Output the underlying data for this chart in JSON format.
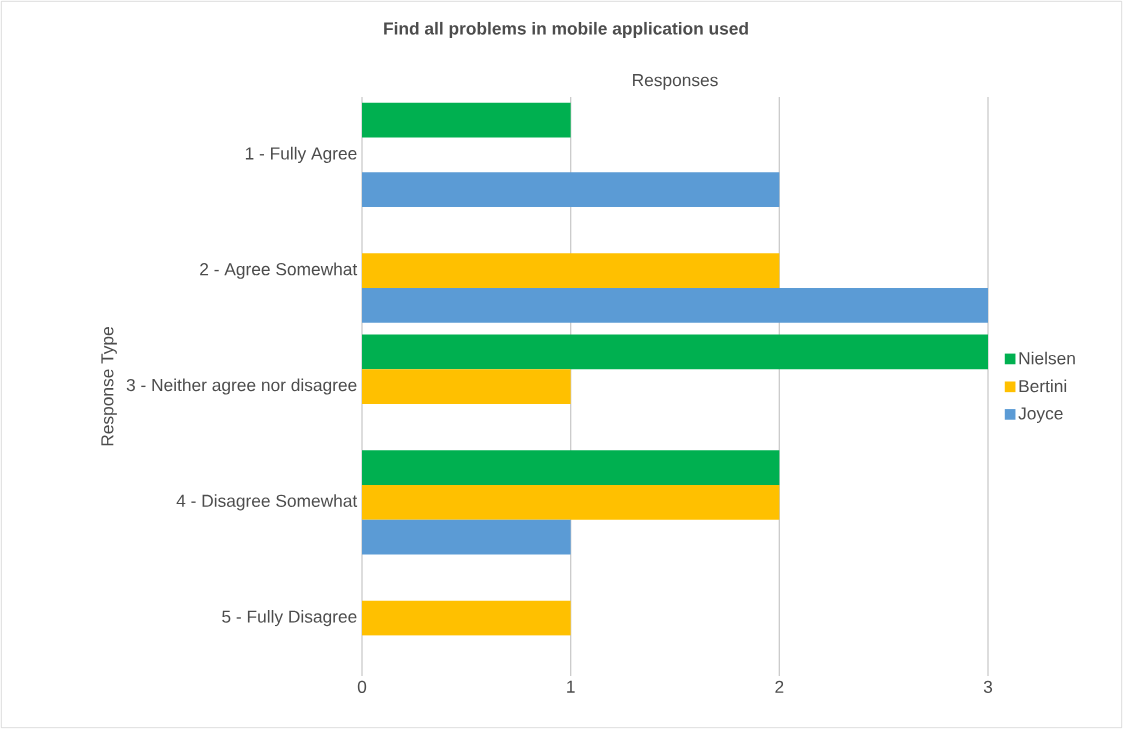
{
  "chart_data": {
    "type": "bar",
    "orientation": "horizontal",
    "title": "Find all problems in mobile application used",
    "xlabel": "Responses",
    "ylabel": "Response Type",
    "categories": [
      "1 - Fully Agree",
      "2 - Agree Somewhat",
      "3 - Neither agree nor disagree",
      "4 - Disagree Somewhat",
      "5 - Fully Disagree"
    ],
    "series": [
      {
        "name": "Nielsen",
        "color": "#00b050",
        "values": [
          1,
          0,
          3,
          2,
          0
        ]
      },
      {
        "name": "Bertini",
        "color": "#ffc000",
        "values": [
          0,
          2,
          1,
          2,
          1
        ]
      },
      {
        "name": "Joyce",
        "color": "#5b9bd5",
        "values": [
          2,
          3,
          0,
          1,
          0
        ]
      }
    ],
    "xlim": [
      0,
      3
    ],
    "xticks": [
      0,
      1,
      2,
      3
    ],
    "grid": "x",
    "legend": "right"
  }
}
